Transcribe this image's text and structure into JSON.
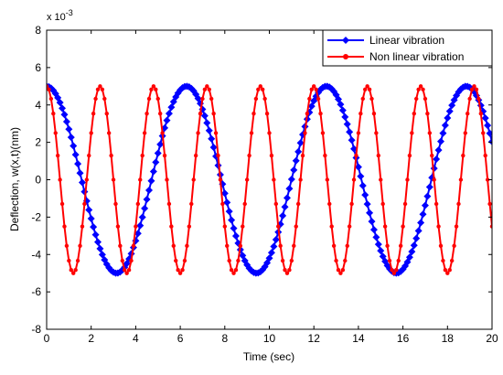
{
  "chart_data": {
    "type": "line",
    "title": "",
    "xlabel": "Time (sec)",
    "ylabel": "Deflection, w(x,t)(nm)",
    "y_scale_label": "x 10",
    "y_scale_exponent": "-3",
    "xlim": [
      0,
      20
    ],
    "ylim": [
      -8,
      8
    ],
    "xticks": [
      0,
      2,
      4,
      6,
      8,
      10,
      12,
      14,
      16,
      18,
      20
    ],
    "yticks": [
      -8,
      -6,
      -4,
      -2,
      0,
      2,
      4,
      6,
      8
    ],
    "grid": false,
    "legend_position": "top-right",
    "series": [
      {
        "name": "Linear vibration",
        "color": "#0000ff",
        "marker": "diamond",
        "amplitude": 5,
        "period": 6.283,
        "x_start": 0,
        "x_end": 20,
        "sample_step": 0.1
      },
      {
        "name": "Non linear vibration",
        "color": "#ff0000",
        "marker": "circle",
        "amplitude": 5,
        "period": 2.4,
        "x_start": 0,
        "x_end": 20,
        "sample_step": 0.1
      }
    ]
  }
}
